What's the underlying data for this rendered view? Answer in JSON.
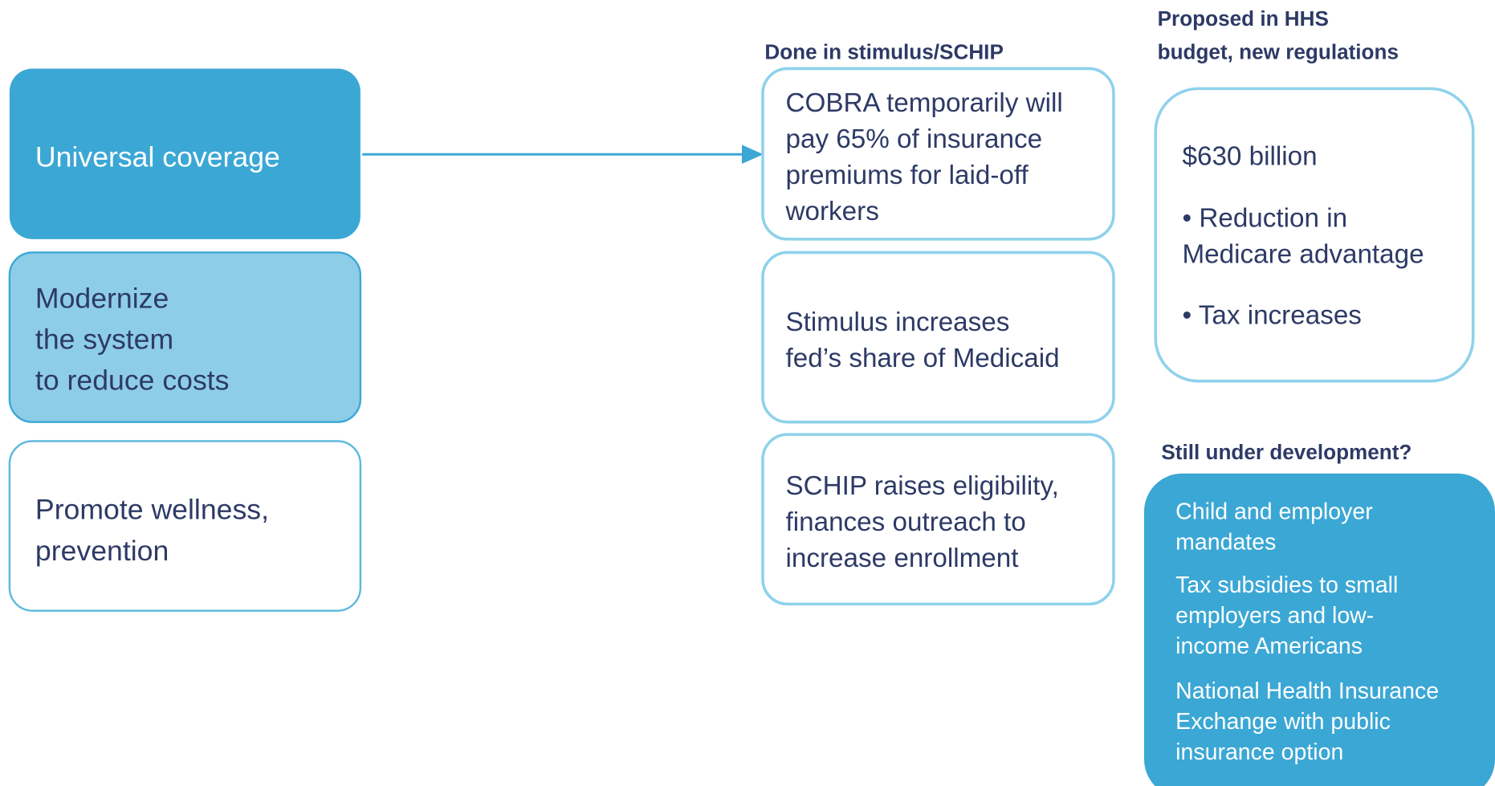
{
  "left_boxes": [
    {
      "lines": [
        "Universal coverage"
      ]
    },
    {
      "lines": [
        "Modernize",
        "the system",
        "to reduce costs"
      ]
    },
    {
      "lines": [
        "Promote wellness,",
        "prevention"
      ]
    }
  ],
  "middle": {
    "heading": "Done in stimulus/SCHIP",
    "boxes": [
      {
        "lines": [
          "COBRA temporarily will",
          "pay 65% of insurance",
          "premiums for laid-off",
          "workers"
        ]
      },
      {
        "lines": [
          "Stimulus increases",
          "fed’s share of Medicaid"
        ]
      },
      {
        "lines": [
          "SCHIP raises eligibility,",
          "finances outreach to",
          "increase enrollment"
        ]
      }
    ]
  },
  "proposed": {
    "heading": [
      "Proposed in HHS",
      "budget, new regulations"
    ],
    "lines": [
      "$630 billion",
      "• Reduction in",
      "Medicare advantage",
      "• Tax increases"
    ]
  },
  "development": {
    "heading": "Still under development?",
    "lines": [
      "Child and employer",
      "mandates",
      "Tax subsidies to small",
      "employers and low-",
      "income Americans",
      "National Health Insurance",
      "Exchange with public",
      "insurance option"
    ]
  }
}
